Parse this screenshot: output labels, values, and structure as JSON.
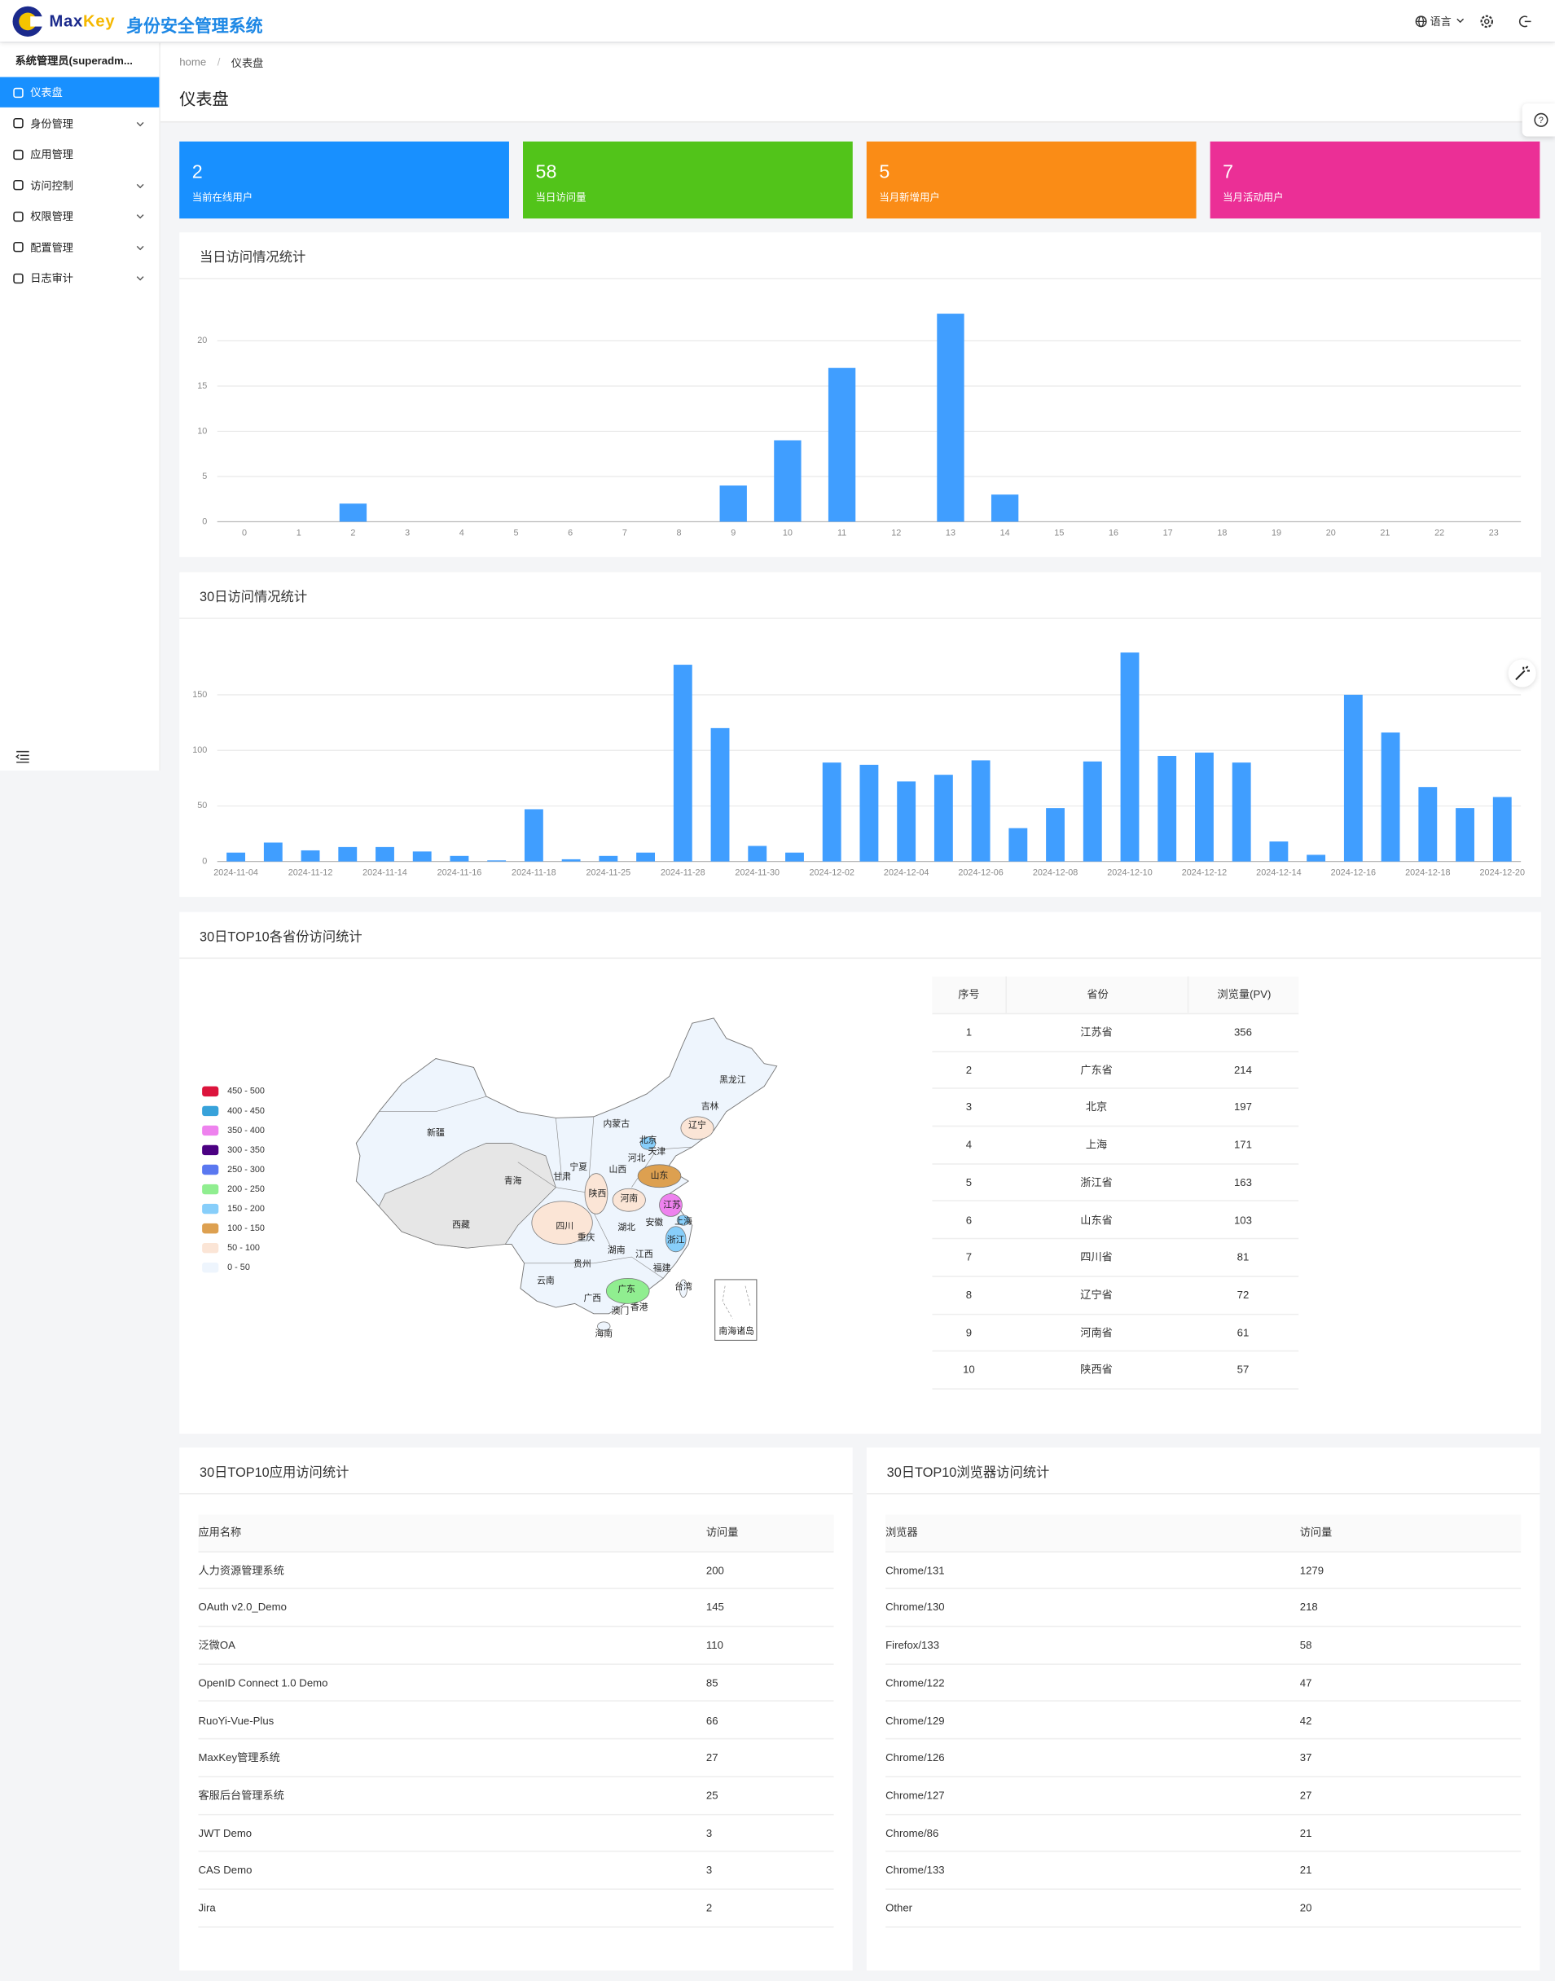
{
  "header": {
    "brand": [
      "Max",
      "Key"
    ],
    "title": "身份安全管理系统",
    "language": "语言"
  },
  "sidebar": {
    "user": "系统管理员(superadm...",
    "menu": [
      "仪表盘",
      "身份管理",
      "应用管理",
      "访问控制",
      "权限管理",
      "配置管理",
      "日志审计"
    ]
  },
  "breadcrumb": [
    "home",
    "仪表盘"
  ],
  "page_title": "仪表盘",
  "stats": [
    {
      "value": 2,
      "label": "当前在线用户",
      "color": "#1890ff"
    },
    {
      "value": 58,
      "label": "当日访问量",
      "color": "#52c41a"
    },
    {
      "value": 5,
      "label": "当月新增用户",
      "color": "#fa8c16"
    },
    {
      "value": 7,
      "label": "当月活动用户",
      "color": "#eb2f96"
    }
  ],
  "chart_data": [
    {
      "type": "bar",
      "title": "当日访问情况统计",
      "categories": [
        "0",
        "1",
        "2",
        "3",
        "4",
        "5",
        "6",
        "7",
        "8",
        "9",
        "10",
        "11",
        "12",
        "13",
        "14",
        "15",
        "16",
        "17",
        "18",
        "19",
        "20",
        "21",
        "22",
        "23"
      ],
      "values": [
        0,
        0,
        2,
        0,
        0,
        0,
        0,
        0,
        0,
        4,
        9,
        17,
        0,
        23,
        3,
        0,
        0,
        0,
        0,
        0,
        0,
        0,
        0,
        0
      ],
      "color": "#409eff",
      "ylim": [
        0,
        25
      ],
      "yticks": [
        0,
        5,
        10,
        15,
        20
      ],
      "grid": true
    },
    {
      "type": "bar",
      "title": "30日访问情况统计",
      "categories": [
        "2024-11-04",
        null,
        "2024-11-12",
        null,
        "2024-11-14",
        null,
        "2024-11-16",
        null,
        "2024-11-18",
        null,
        "2024-11-25",
        null,
        "2024-11-28",
        null,
        "2024-11-30",
        null,
        "2024-12-02",
        null,
        "2024-12-04",
        null,
        "2024-12-06",
        null,
        "2024-12-08",
        null,
        "2024-12-10",
        null,
        "2024-12-12",
        null,
        "2024-12-14",
        null,
        "2024-12-16",
        null,
        "2024-12-18",
        null,
        "2024-12-20"
      ],
      "values": [
        8,
        17,
        10,
        13,
        13,
        9,
        5,
        1,
        47,
        2,
        5,
        8,
        177,
        120,
        14,
        8,
        89,
        87,
        72,
        78,
        91,
        30,
        48,
        90,
        188,
        95,
        98,
        89,
        18,
        6,
        150,
        116,
        67,
        48,
        58
      ],
      "color": "#409eff",
      "ylim": [
        0,
        200
      ],
      "yticks": [
        0,
        50,
        100,
        150
      ],
      "grid": true
    }
  ],
  "province_map": {
    "title": "30日TOP10各省份访问统计",
    "legend": [
      {
        "label": "450 - 500",
        "color": "#dc143c"
      },
      {
        "label": "400 - 450",
        "color": "#37a2da"
      },
      {
        "label": "350 - 400",
        "color": "#ee82ee"
      },
      {
        "label": "300 - 350",
        "color": "#4b0082"
      },
      {
        "label": "250 - 300",
        "color": "#5a78f0"
      },
      {
        "label": "200 - 250",
        "color": "#90ee90"
      },
      {
        "label": "150 - 200",
        "color": "#87cefa"
      },
      {
        "label": "100 - 150",
        "color": "#dda050"
      },
      {
        "label": "50 - 100",
        "color": "#fbe5d6"
      },
      {
        "label": "0 - 50",
        "color": "#eef5fd"
      }
    ],
    "provinces": [
      {
        "name": "黑龙江"
      },
      {
        "name": "吉林"
      },
      {
        "name": "辽宁",
        "color": "#fbe5d6"
      },
      {
        "name": "内蒙古"
      },
      {
        "name": "北京",
        "color": "#87cefa"
      },
      {
        "name": "天津"
      },
      {
        "name": "河北"
      },
      {
        "name": "宁夏"
      },
      {
        "name": "山西"
      },
      {
        "name": "山东",
        "color": "#dda050"
      },
      {
        "name": "甘肃"
      },
      {
        "name": "青海"
      },
      {
        "name": "新疆"
      },
      {
        "name": "陕西",
        "color": "#fbe5d6"
      },
      {
        "name": "河南",
        "color": "#fbe5d6"
      },
      {
        "name": "江苏",
        "color": "#ee82ee"
      },
      {
        "name": "西藏"
      },
      {
        "name": "四川",
        "color": "#fbe5d6"
      },
      {
        "name": "安徽"
      },
      {
        "name": "上海",
        "color": "#87cefa"
      },
      {
        "name": "湖北"
      },
      {
        "name": "重庆"
      },
      {
        "name": "浙江",
        "color": "#87cefa"
      },
      {
        "name": "湖南"
      },
      {
        "name": "江西"
      },
      {
        "name": "贵州"
      },
      {
        "name": "福建"
      },
      {
        "name": "云南"
      },
      {
        "name": "台湾"
      },
      {
        "name": "广西"
      },
      {
        "name": "广东",
        "color": "#90ee90"
      },
      {
        "name": "香港"
      },
      {
        "name": "澳门"
      },
      {
        "name": "海南"
      },
      {
        "name": "南海诸岛"
      }
    ]
  },
  "province_table": {
    "columns": [
      "序号",
      "省份",
      "浏览量(PV)"
    ],
    "rows": [
      [
        1,
        "江苏省",
        356
      ],
      [
        2,
        "广东省",
        214
      ],
      [
        3,
        "北京",
        197
      ],
      [
        4,
        "上海",
        171
      ],
      [
        5,
        "浙江省",
        163
      ],
      [
        6,
        "山东省",
        103
      ],
      [
        7,
        "四川省",
        81
      ],
      [
        8,
        "辽宁省",
        72
      ],
      [
        9,
        "河南省",
        61
      ],
      [
        10,
        "陕西省",
        57
      ]
    ]
  },
  "app_table": {
    "title": "30日TOP10应用访问统计",
    "columns": [
      "应用名称",
      "访问量"
    ],
    "rows": [
      [
        "人力资源管理系统",
        200
      ],
      [
        "OAuth v2.0_Demo",
        145
      ],
      [
        "泛微OA",
        110
      ],
      [
        "OpenID Connect 1.0 Demo",
        85
      ],
      [
        "RuoYi-Vue-Plus",
        66
      ],
      [
        "MaxKey管理系统",
        27
      ],
      [
        "客服后台管理系统",
        25
      ],
      [
        "JWT Demo",
        3
      ],
      [
        "CAS Demo",
        3
      ],
      [
        "Jira",
        2
      ]
    ]
  },
  "browser_table": {
    "title": "30日TOP10浏览器访问统计",
    "columns": [
      "浏览器",
      "访问量"
    ],
    "rows": [
      [
        "Chrome/131",
        1279
      ],
      [
        "Chrome/130",
        218
      ],
      [
        "Firefox/133",
        58
      ],
      [
        "Chrome/122",
        47
      ],
      [
        "Chrome/129",
        42
      ],
      [
        "Chrome/126",
        37
      ],
      [
        "Chrome/127",
        27
      ],
      [
        "Chrome/86",
        21
      ],
      [
        "Chrome/133",
        21
      ],
      [
        "Other",
        20
      ]
    ]
  }
}
